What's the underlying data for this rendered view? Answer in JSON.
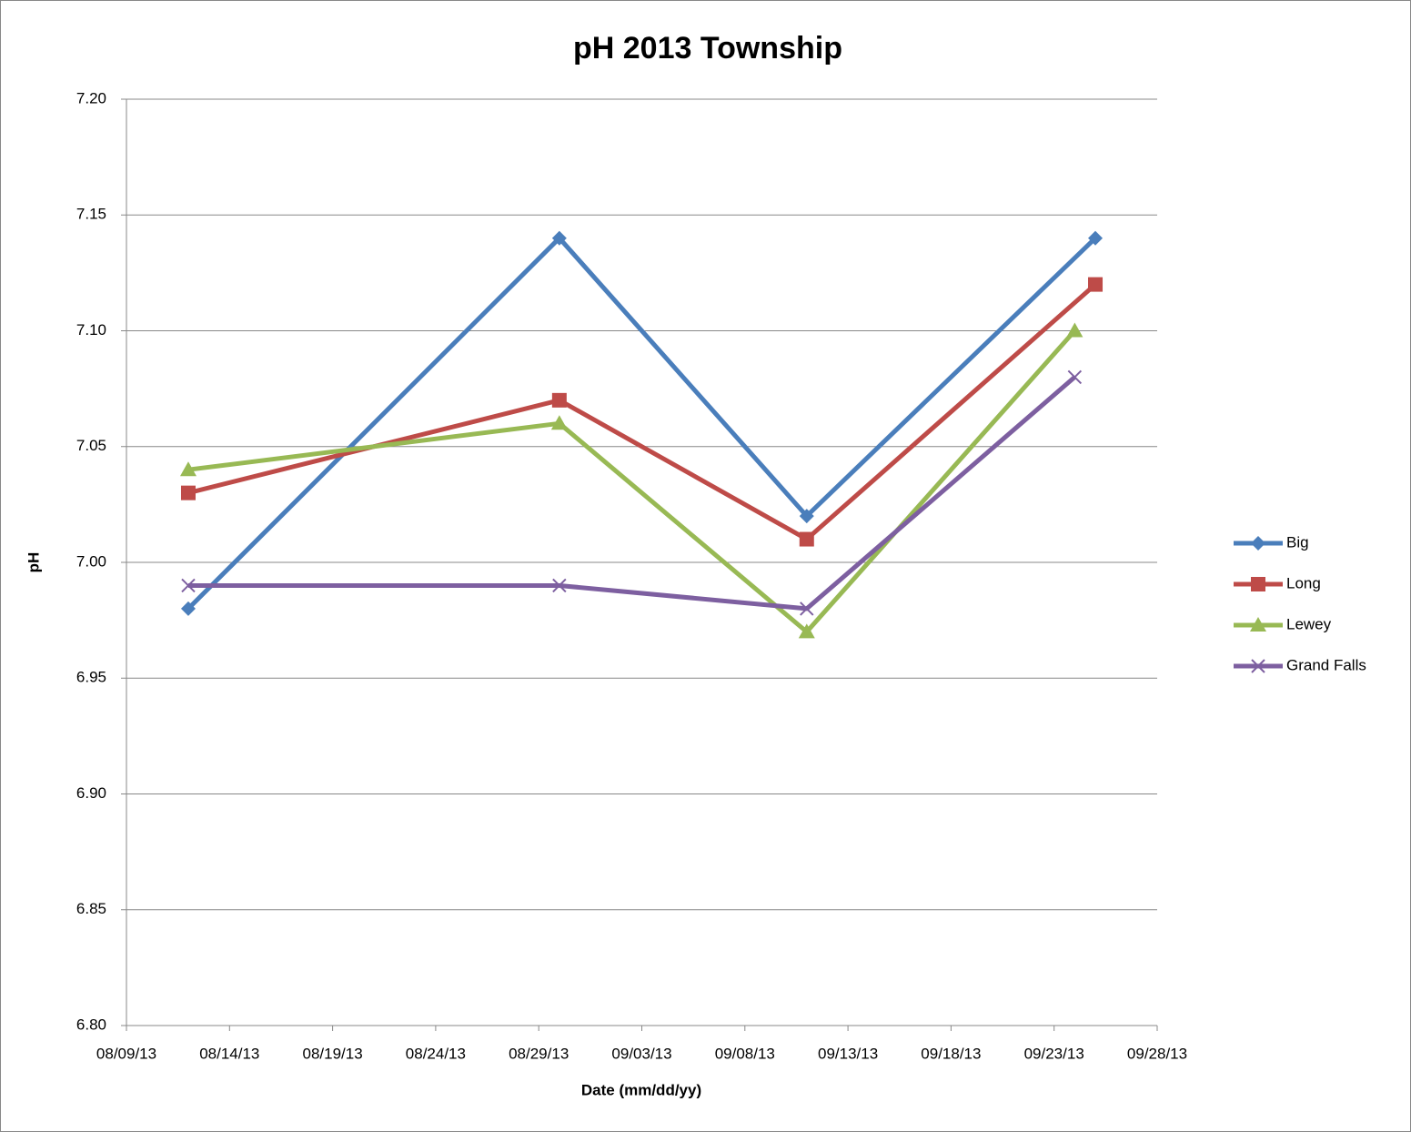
{
  "chart_data": {
    "type": "line",
    "title": "pH 2013 Township",
    "x_label": "Date (mm/dd/yy)",
    "y_label": "pH",
    "xlim": [
      "08/09/13",
      "09/28/13"
    ],
    "xticks": [
      "08/09/13",
      "08/14/13",
      "08/19/13",
      "08/24/13",
      "08/29/13",
      "09/03/13",
      "09/08/13",
      "09/13/13",
      "09/18/13",
      "09/23/13",
      "09/28/13"
    ],
    "ylim": [
      6.8,
      7.2
    ],
    "yticks": [
      {
        "value": 6.8,
        "label": "6.80"
      },
      6.85,
      {
        "value": 6.9,
        "label": "6.90"
      },
      6.95,
      {
        "value": 7.0,
        "label": "7.00"
      },
      7.05,
      {
        "value": 7.1,
        "label": "7.10"
      },
      7.15,
      {
        "value": 7.2,
        "label": "7.20"
      }
    ],
    "grid": true,
    "legend": "right",
    "series": [
      {
        "name": "Big",
        "color": "#4a7ebb",
        "marker": "diamond",
        "x": [
          "08/12/13",
          "08/30/13",
          "09/11/13",
          "09/25/13"
        ],
        "values": [
          6.98,
          7.14,
          7.02,
          7.14
        ]
      },
      {
        "name": "Long",
        "color": "#be4b48",
        "marker": "square",
        "x": [
          "08/12/13",
          "08/30/13",
          "09/11/13",
          "09/25/13"
        ],
        "values": [
          7.03,
          7.07,
          7.01,
          7.12
        ]
      },
      {
        "name": "Lewey",
        "color": "#98b954",
        "marker": "triangle",
        "x": [
          "08/12/13",
          "08/30/13",
          "09/11/13",
          "09/24/13"
        ],
        "values": [
          7.04,
          7.06,
          6.97,
          7.1
        ]
      },
      {
        "name": "Grand Falls",
        "color": "#7d5fa0",
        "marker": "x",
        "x": [
          "08/12/13",
          "08/30/13",
          "09/11/13",
          "09/24/13"
        ],
        "values": [
          6.99,
          6.99,
          6.98,
          7.08
        ]
      }
    ]
  }
}
